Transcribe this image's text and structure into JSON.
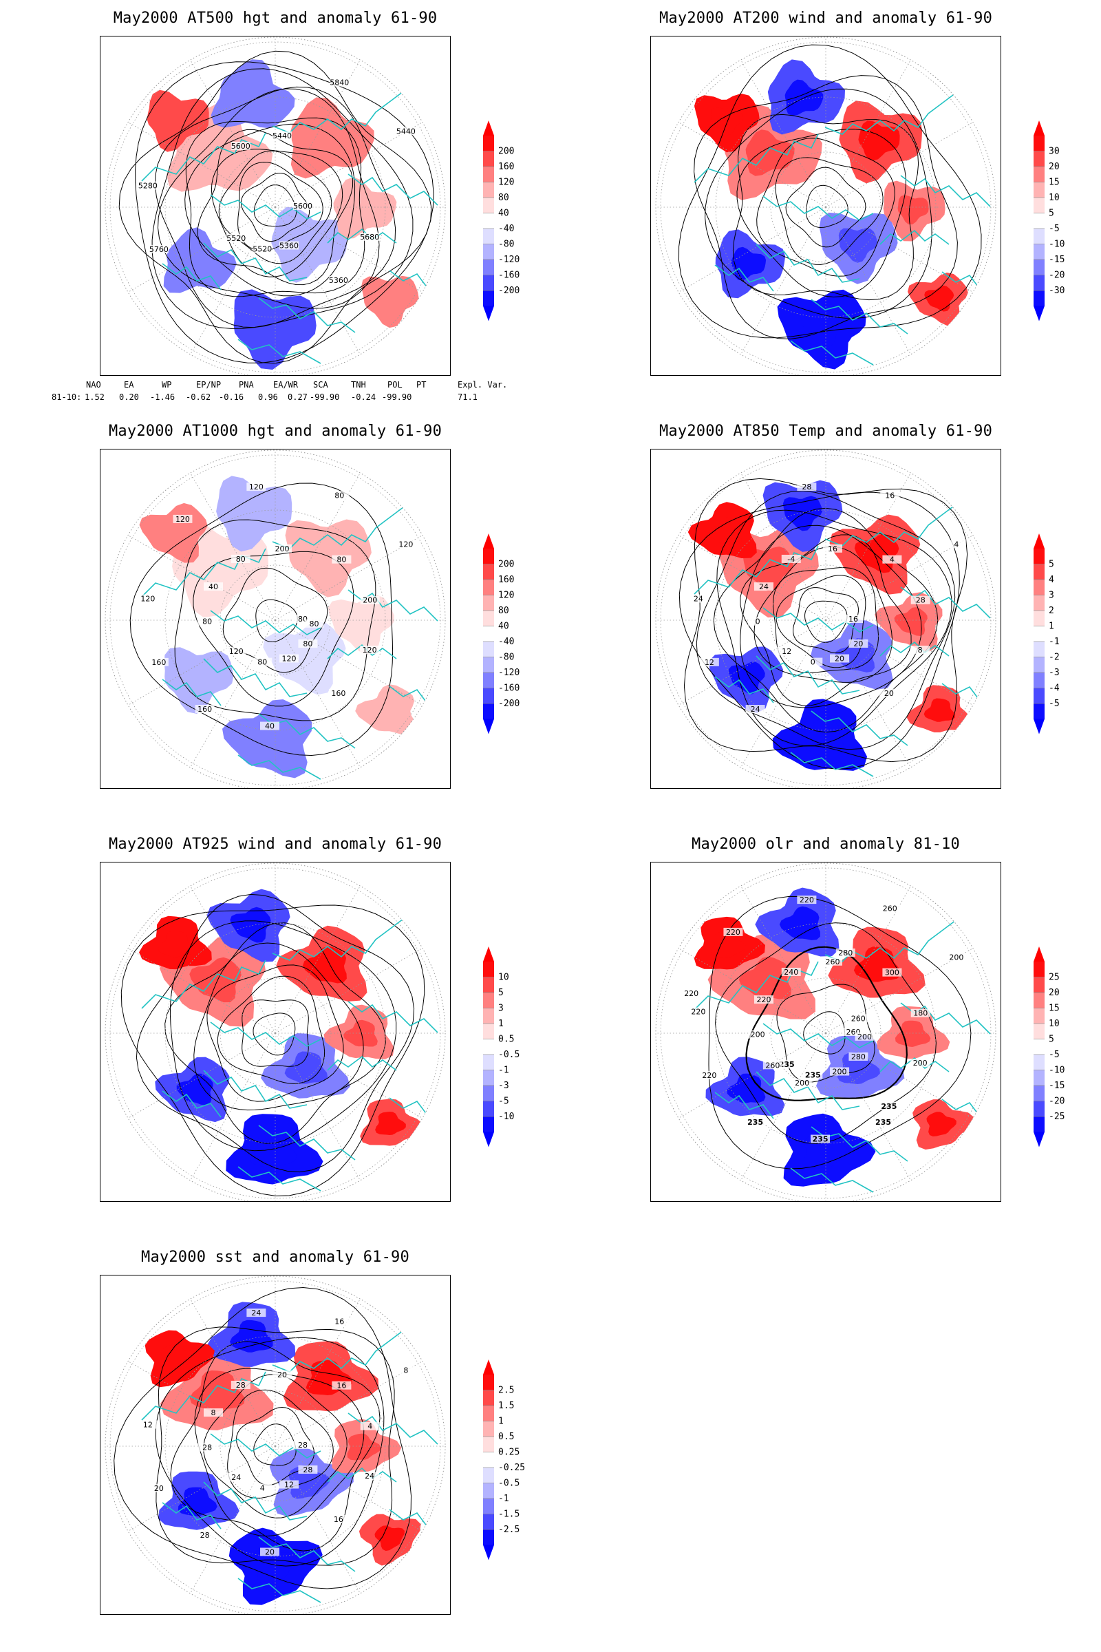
{
  "panels": [
    {
      "id": "p500",
      "title": "May2000 AT500 hgt and anomaly 61-90",
      "scale": [
        "200",
        "160",
        "120",
        "80",
        "40",
        "-40",
        "-80",
        "-120",
        "-160",
        "-200"
      ],
      "contours": [
        "5600",
        "5520",
        "5440",
        "5360",
        "5280",
        "5440",
        "5520",
        "5600",
        "5680",
        "5760",
        "5840",
        "5360"
      ]
    },
    {
      "id": "p200",
      "title": "May2000 AT200 wind and anomaly 61-90",
      "scale": [
        "30",
        "20",
        "15",
        "10",
        "5",
        "-5",
        "-10",
        "-15",
        "-20",
        "-30"
      ],
      "contours": []
    },
    {
      "id": "p1000",
      "title": "May2000 AT1000 hgt and anomaly 61-90",
      "scale": [
        "200",
        "160",
        "120",
        "80",
        "40",
        "-40",
        "-80",
        "-120",
        "-160",
        "-200"
      ],
      "contours": [
        "80",
        "120",
        "200",
        "160",
        "120",
        "120",
        "80",
        "80",
        "120",
        "160",
        "80",
        "120",
        "40",
        "200",
        "160",
        "120",
        "80",
        "80",
        "80",
        "40",
        "120",
        "80"
      ]
    },
    {
      "id": "p850",
      "title": "May2000 AT850 Temp and anomaly 61-90",
      "scale": [
        "5",
        "4",
        "3",
        "2",
        "1",
        "-1",
        "-2",
        "-3",
        "-4",
        "-5"
      ],
      "contours": [
        "16",
        "12",
        "16",
        "20",
        "24",
        "4",
        "0",
        "-4",
        "8",
        "12",
        "16",
        "20",
        "24",
        "28",
        "24",
        "28",
        "20",
        "0",
        "4"
      ]
    },
    {
      "id": "p925",
      "title": "May2000 AT925 wind and anomaly 61-90",
      "scale": [
        "10",
        "5",
        "3",
        "1",
        "0.5",
        "-0.5",
        "-1",
        "-3",
        "-5",
        "-10"
      ],
      "contours": []
    },
    {
      "id": "polr",
      "title": "May2000 olr and anomaly 81-10",
      "scale": [
        "25",
        "20",
        "15",
        "10",
        "5",
        "-5",
        "-10",
        "-15",
        "-20",
        "-25"
      ],
      "contours": [
        "260",
        "235",
        "260",
        "235",
        "220",
        "200",
        "235",
        "240",
        "200",
        "220",
        "260",
        "200",
        "220",
        "180",
        "235",
        "220",
        "280",
        "200",
        "300",
        "235",
        "220",
        "200",
        "260",
        "280",
        "235",
        "220",
        "260",
        "200"
      ]
    },
    {
      "id": "psst",
      "title": "May2000 sst and anomaly 61-90",
      "scale": [
        "2.5",
        "1.5",
        "1",
        "0.5",
        "0.25",
        "-0.25",
        "-0.5",
        "-1",
        "-1.5",
        "-2.5"
      ],
      "contours": [
        "28",
        "24",
        "20",
        "16",
        "12",
        "8",
        "4",
        "28",
        "24",
        "20",
        "16",
        "12",
        "8",
        "4",
        "28",
        "24",
        "28",
        "28",
        "16",
        "20"
      ]
    }
  ],
  "teleconnection": {
    "headers": [
      "NAO",
      "EA",
      "WP",
      "EP/NP",
      "PNA",
      "EA/WR",
      "SCA",
      "TNH",
      "POL",
      "PT",
      "Expl. Var."
    ],
    "row_label": "81-10:",
    "values": [
      "1.52",
      "0.20",
      "-1.46",
      "-0.62",
      "-0.16",
      "0.96",
      "0.27",
      "-99.90",
      "-0.24",
      "-99.90",
      "71.1"
    ]
  },
  "colors": {
    "coast": "#22c3c3",
    "red_ramp": [
      "#ff0d0d",
      "#ff4a4a",
      "#ff8080",
      "#ffb3b3",
      "#ffdede"
    ],
    "blue_ramp": [
      "#dedeff",
      "#b3b3ff",
      "#8080ff",
      "#4a4aff",
      "#0d0dff"
    ]
  }
}
